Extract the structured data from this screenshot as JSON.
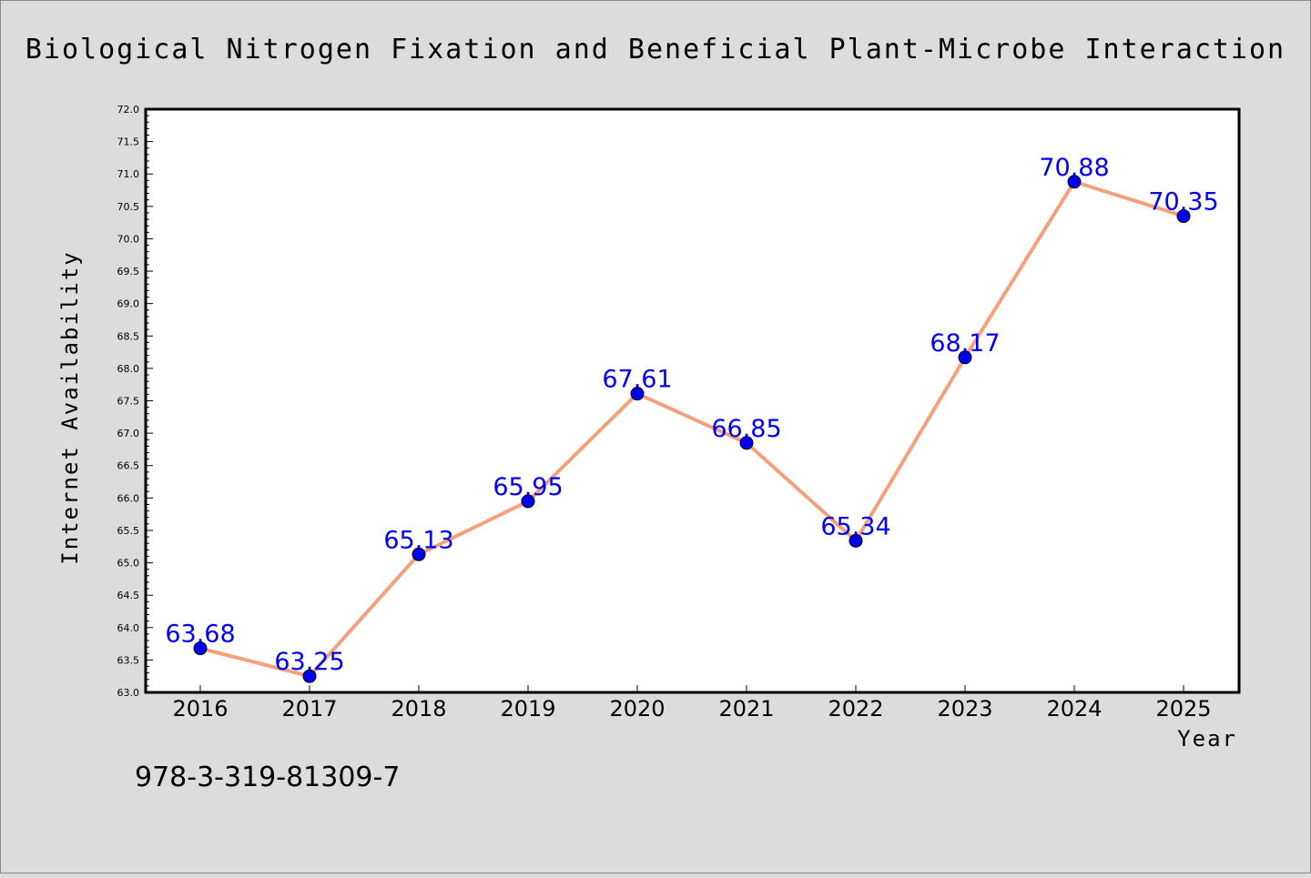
{
  "chart_data": {
    "type": "line",
    "title": "Biological Nitrogen Fixation and Beneficial Plant-Microbe Interaction",
    "xlabel": "Year",
    "ylabel": "Internet Availability",
    "categories": [
      "2016",
      "2017",
      "2018",
      "2019",
      "2020",
      "2021",
      "2022",
      "2023",
      "2024",
      "2025"
    ],
    "series": [
      {
        "values": [
          63.68,
          63.25,
          65.13,
          65.95,
          67.61,
          66.85,
          65.34,
          68.17,
          70.88,
          70.35
        ],
        "data_labels": [
          "63.68",
          "63.25",
          "65.13",
          "65.95",
          "67.61",
          "66.85",
          "65.34",
          "68.17",
          "70.88",
          "70.35"
        ],
        "line_color": "#f4a07c",
        "marker_color": "#0000ee",
        "label_color": "#0000ee"
      }
    ],
    "ylim": [
      63.0,
      72.0
    ],
    "yticks": [
      "63.0",
      "63.5",
      "64.0",
      "64.5",
      "65.0",
      "65.5",
      "66.0",
      "66.5",
      "67.0",
      "67.5",
      "68.0",
      "68.5",
      "69.0",
      "69.5",
      "70.0",
      "70.5",
      "71.0",
      "71.5",
      "72.0"
    ],
    "grid": false,
    "legend": "none"
  },
  "footer": {
    "isbn": "978-3-319-81309-7"
  },
  "colors": {
    "background": "#dcdcdc",
    "plot_background": "#ffffff"
  }
}
